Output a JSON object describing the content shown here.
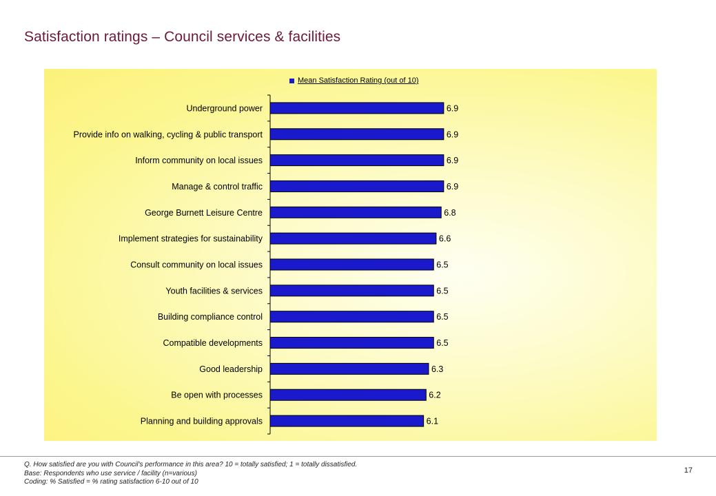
{
  "slide": {
    "title": "Satisfaction ratings – Council services & facilities",
    "page_number": "17"
  },
  "footnotes": [
    "Q. How satisfied are you with Council's performance in this area?  10 = totally satisfied; 1 = totally dissatisfied.",
    "Base: Respondents who use service / facility (n=various)",
    "Coding: % Satisfied = % rating satisfaction 6-10 out of 10"
  ],
  "chart_data": {
    "type": "bar",
    "orientation": "horizontal",
    "categories": [
      "Underground power",
      "Provide info on walking, cycling & public transport",
      "Inform community on local issues",
      "Manage & control traffic",
      "George Burnett Leisure Centre",
      "Implement strategies for sustainability",
      "Consult  community on local issues",
      "Youth facilities & services",
      "Building compliance control",
      "Compatible developments",
      "Good leadership",
      "Be open with processes",
      "Planning and building approvals"
    ],
    "series": [
      {
        "name": "Mean Satisfaction Rating (out of 10)",
        "values": [
          6.9,
          6.9,
          6.9,
          6.9,
          6.8,
          6.6,
          6.5,
          6.5,
          6.5,
          6.5,
          6.3,
          6.2,
          6.1
        ],
        "color": "#1a1acc"
      }
    ],
    "data_labels": [
      "6.9",
      "6.9",
      "6.9",
      "6.9",
      "6.8",
      "6.6",
      "6.5",
      "6.5",
      "6.5",
      "6.5",
      "6.3",
      "6.2",
      "6.1"
    ],
    "xlim": [
      0,
      15
    ],
    "legend_position": "top",
    "grid": false,
    "background_color": "#fcf68f",
    "bar_outline_color": "#000000"
  }
}
